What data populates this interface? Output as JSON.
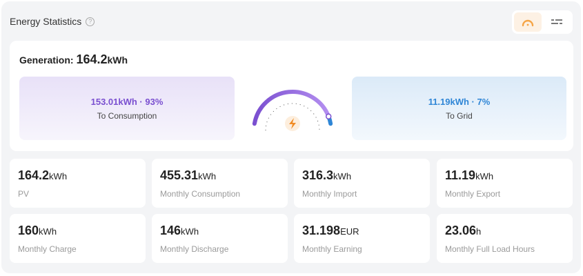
{
  "header": {
    "title": "Energy Statistics",
    "help_glyph": "?",
    "view_toggle": {
      "gauge_view_icon": "gauge-icon",
      "list_view_icon": "list-icon",
      "active": "gauge"
    }
  },
  "summary": {
    "generation_label": "Generation:",
    "generation_value": "164.2",
    "generation_unit": "kWh",
    "consumption": {
      "value": "153.01kWh · 93%",
      "label": "To Consumption"
    },
    "grid": {
      "value": "11.19kWh · 7%",
      "label": "To Grid"
    },
    "gauge_consumption_fraction": 0.93,
    "colors": {
      "consumption": "#7a4fd0",
      "grid": "#2f86d6",
      "accent": "#f5a445"
    }
  },
  "stats": [
    {
      "value": "164.2",
      "unit": "kWh",
      "label": "PV"
    },
    {
      "value": "455.31",
      "unit": "kWh",
      "label": "Monthly Consumption"
    },
    {
      "value": "316.3",
      "unit": "kWh",
      "label": "Monthly Import"
    },
    {
      "value": "11.19",
      "unit": "kWh",
      "label": "Monthly Export"
    },
    {
      "value": "160",
      "unit": "kWh",
      "label": "Monthly Charge"
    },
    {
      "value": "146",
      "unit": "kWh",
      "label": "Monthly Discharge"
    },
    {
      "value": "31.198",
      "unit": "EUR",
      "label": "Monthly Earning"
    },
    {
      "value": "23.06",
      "unit": "h",
      "label": "Monthly Full Load Hours"
    }
  ]
}
